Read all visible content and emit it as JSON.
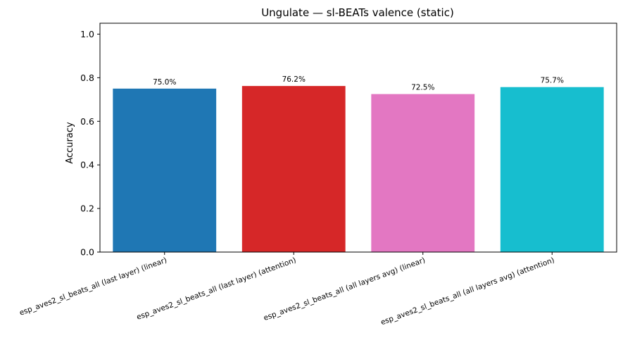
{
  "chart_data": {
    "type": "bar",
    "title": "Ungulate — sl-BEATs valence (static)",
    "xlabel": "",
    "ylabel": "Accuracy",
    "ylim": [
      0,
      1.05
    ],
    "yticks": [
      0.0,
      0.2,
      0.4,
      0.6,
      0.8,
      1.0
    ],
    "ytick_labels": [
      "0.0",
      "0.2",
      "0.4",
      "0.6",
      "0.8",
      "1.0"
    ],
    "grid": false,
    "legend": "none",
    "categories": [
      "esp_aves2_sl_beats_all (last layer) (linear)",
      "esp_aves2_sl_beats_all (last layer) (attention)",
      "esp_aves2_sl_beats_all (all layers avg) (linear)",
      "esp_aves2_sl_beats_all (all layers avg) (attention)"
    ],
    "values": [
      0.75,
      0.762,
      0.725,
      0.757
    ],
    "data_labels": [
      "75.0%",
      "76.2%",
      "72.5%",
      "75.7%"
    ],
    "colors": [
      "#1f77b4",
      "#d62728",
      "#e377c2",
      "#17becf"
    ]
  }
}
